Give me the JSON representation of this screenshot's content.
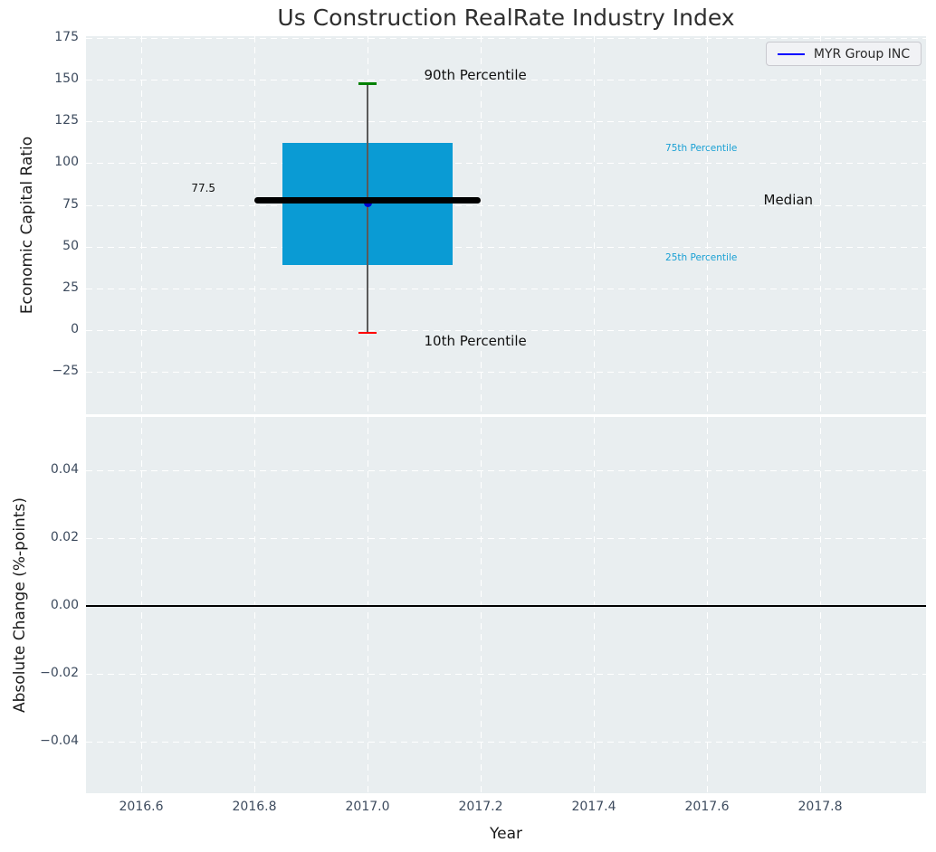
{
  "figure": {
    "title": "Us Construction RealRate Industry Index"
  },
  "legend": {
    "label": "MYR Group INC",
    "line_color": "#0000ff"
  },
  "palette": {
    "plot_bg": "#e9eef0",
    "grid": "#ffffff",
    "tick_label": "#3d4b5e",
    "title": "#2e2e2e",
    "box_fill": "#0a9bd4",
    "median_line": "#000000",
    "whisker": "#5a5a5a",
    "cap_top": "#008000",
    "cap_bottom": "#ff0000",
    "company_marker": "#0000cd",
    "annotation_accent": "#19a0d4",
    "annotation_text": "#111111",
    "zero_line": "#000000"
  },
  "chart_data": [
    {
      "type": "boxplot",
      "panel": "top",
      "title": "Us Construction RealRate Industry Index",
      "ylabel": "Economic Capital Ratio",
      "xlim": [
        2016.5024,
        2017.9872
      ],
      "ylim": [
        -50.35,
        175.96
      ],
      "grid": true,
      "yticks": [
        {
          "v": 175,
          "label": "175"
        },
        {
          "v": 150,
          "label": "150"
        },
        {
          "v": 125,
          "label": "125"
        },
        {
          "v": 100,
          "label": "100"
        },
        {
          "v": 75,
          "label": "75"
        },
        {
          "v": 50,
          "label": "50"
        },
        {
          "v": 25,
          "label": "25"
        },
        {
          "v": 0,
          "label": "0"
        },
        {
          "v": -25,
          "label": "−25"
        }
      ],
      "series": [
        {
          "name": "MYR Group INC",
          "x": 2017.0,
          "p90": 147.5,
          "p75": 112,
          "median": 77.5,
          "p25": 39,
          "p10": -1.5,
          "box_half_width": 0.15,
          "median_half_width": 0.2,
          "company_point": {
            "x": 2017.0,
            "y": 76
          }
        }
      ],
      "annotations": [
        {
          "text": "90th Percentile",
          "x": 2017.1,
          "y": 152.5,
          "ha": "left",
          "size": 15,
          "color": "annotation_text"
        },
        {
          "text": "10th Percentile",
          "x": 2017.1,
          "y": -6.5,
          "ha": "left",
          "size": 15,
          "color": "annotation_text"
        },
        {
          "text": "Median",
          "x": 2017.7,
          "y": 78.0,
          "ha": "left",
          "size": 15,
          "color": "annotation_text"
        },
        {
          "text": "75th Percentile",
          "x": 2017.59,
          "y": 108.8,
          "ha": "center",
          "size": 10.5,
          "color": "annotation_accent"
        },
        {
          "text": "25th Percentile",
          "x": 2017.59,
          "y": 43.3,
          "ha": "center",
          "size": 10.5,
          "color": "annotation_accent"
        },
        {
          "text": "77.5",
          "x": 2016.71,
          "y": 85.0,
          "ha": "center",
          "size": 12,
          "color": "annotation_text"
        }
      ]
    },
    {
      "type": "line",
      "panel": "bottom",
      "ylabel": "Absolute Change (%-points)",
      "xlabel": "Year",
      "xlim": [
        2016.5024,
        2017.9872
      ],
      "ylim": [
        -0.0552,
        0.05573
      ],
      "grid": true,
      "zero_line": 0.0,
      "yticks": [
        {
          "v": 0.04,
          "label": "0.04"
        },
        {
          "v": 0.02,
          "label": "0.02"
        },
        {
          "v": 0.0,
          "label": "0.00"
        },
        {
          "v": -0.02,
          "label": "−0.02"
        },
        {
          "v": -0.04,
          "label": "−0.04"
        }
      ],
      "xticks": [
        {
          "v": 2016.6,
          "label": "2016.6"
        },
        {
          "v": 2016.8,
          "label": "2016.8"
        },
        {
          "v": 2017.0,
          "label": "2017.0"
        },
        {
          "v": 2017.2,
          "label": "2017.2"
        },
        {
          "v": 2017.4,
          "label": "2017.4"
        },
        {
          "v": 2017.6,
          "label": "2017.6"
        },
        {
          "v": 2017.8,
          "label": "2017.8"
        }
      ]
    }
  ]
}
